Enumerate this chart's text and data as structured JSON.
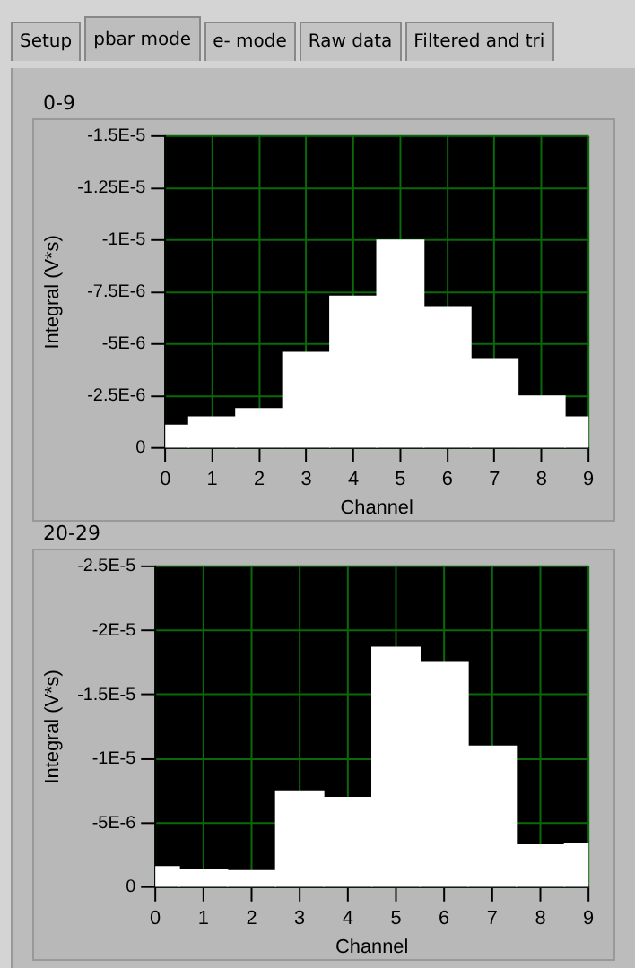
{
  "chart_data": [
    {
      "type": "other",
      "annotations": [
        "Setup",
        "pbar mode",
        "e- mode",
        "Raw data",
        "Filtered and tri"
      ]
    },
    {
      "type": "bar",
      "title": "0-9",
      "xlabel": "Channel",
      "ylabel": "Integral (V*s)",
      "x": [
        0,
        1,
        2,
        3,
        4,
        5,
        6,
        7,
        8,
        9
      ],
      "values": [
        -1.1e-06,
        -1.5e-06,
        -1.9e-06,
        -4.6e-06,
        -7.3e-06,
        -1e-05,
        -6.8e-06,
        -4.3e-06,
        -2.5e-06,
        -1.5e-06
      ],
      "color": "#ffffff",
      "xlim": [
        0,
        9
      ],
      "xticks": [
        0,
        1,
        2,
        3,
        4,
        5,
        6,
        7,
        8,
        9
      ],
      "ylim": [
        0,
        -1.5e-05
      ],
      "yticks": [
        {
          "value": 0,
          "label": "0"
        },
        {
          "value": -2.5e-06,
          "label": "-2.5E-6"
        },
        {
          "value": -5e-06,
          "label": "-5E-6"
        },
        {
          "value": -7.5e-06,
          "label": "-7.5E-6"
        },
        {
          "value": -1e-05,
          "label": "-1E-5"
        },
        {
          "value": -1.25e-05,
          "label": "-1.25E-5"
        },
        {
          "value": -1.5e-05,
          "label": "-1.5E-5"
        }
      ],
      "grid": true
    },
    {
      "type": "bar",
      "title": "20-29",
      "xlabel": "Channel",
      "ylabel": "Integral (V*s)",
      "x": [
        0,
        1,
        2,
        3,
        4,
        5,
        6,
        7,
        8,
        9
      ],
      "values": [
        -1.6e-06,
        -1.4e-06,
        -1.3e-06,
        -7.5e-06,
        -7e-06,
        -1.87e-05,
        -1.75e-05,
        -1.1e-05,
        -3.3e-06,
        -3.4e-06
      ],
      "color": "#ffffff",
      "xlim": [
        0,
        9
      ],
      "xticks": [
        0,
        1,
        2,
        3,
        4,
        5,
        6,
        7,
        8,
        9
      ],
      "ylim": [
        0,
        -2.5e-05
      ],
      "yticks": [
        {
          "value": 0,
          "label": "0"
        },
        {
          "value": -5e-06,
          "label": "-5E-6"
        },
        {
          "value": -1e-05,
          "label": "-1E-5"
        },
        {
          "value": -1.5e-05,
          "label": "-1.5E-5"
        },
        {
          "value": -2e-05,
          "label": "-2E-5"
        },
        {
          "value": -2.5e-05,
          "label": "-2.5E-5"
        }
      ],
      "grid": true
    }
  ]
}
